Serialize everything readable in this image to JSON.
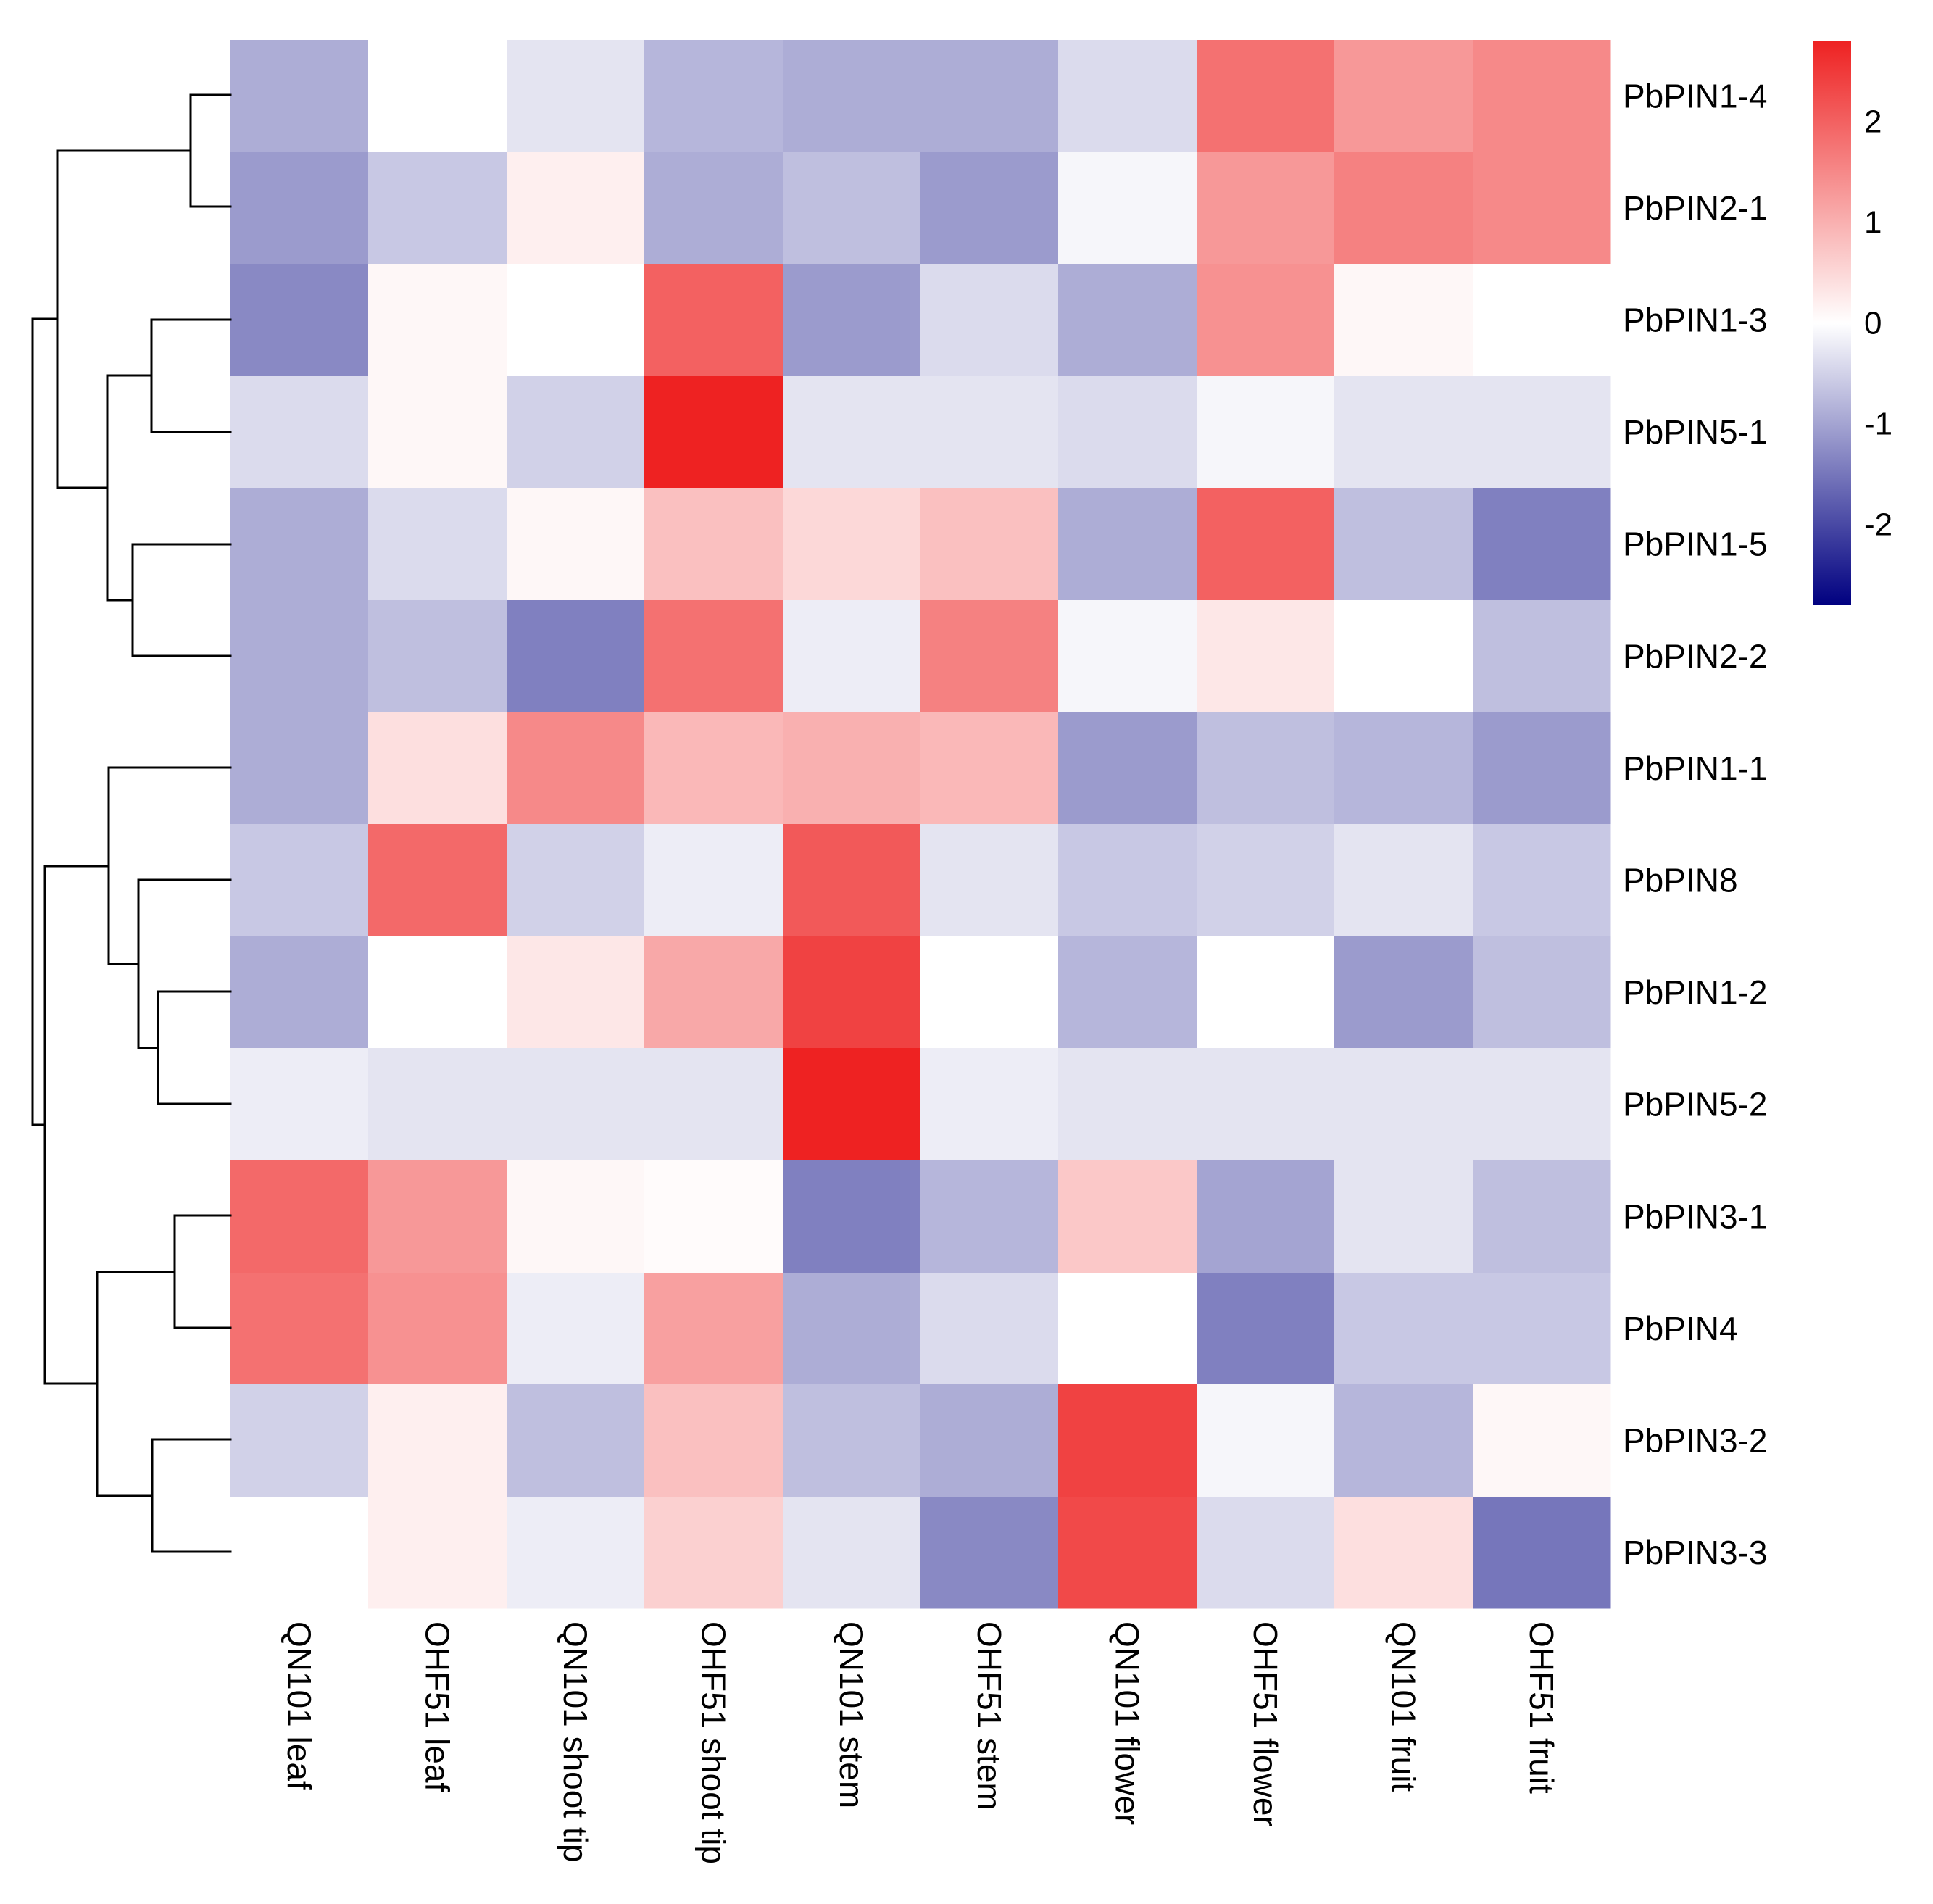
{
  "chart_data": {
    "type": "heatmap",
    "title": "",
    "columns": [
      "QN101 leaf",
      "OHF51 leaf",
      "QN101 shoot tip",
      "OHF51 shoot tip",
      "QN101 stem",
      "OHF51 stem",
      "QN101 flower",
      "OHF51 flower",
      "QN101 fruit",
      "OHF51 fruit"
    ],
    "rows": [
      "PbPIN1-4",
      "PbPIN2-1",
      "PbPIN1-3",
      "PbPIN5-1",
      "PbPIN1-5",
      "PbPIN2-2",
      "PbPIN1-1",
      "PbPIN8",
      "PbPIN1-2",
      "PbPIN5-2",
      "PbPIN3-1",
      "PbPIN4",
      "PbPIN3-2",
      "PbPIN3-3"
    ],
    "values": [
      [
        -0.9,
        0.0,
        -0.3,
        -0.8,
        -0.9,
        -0.9,
        -0.4,
        1.8,
        1.3,
        1.5
      ],
      [
        -1.1,
        -0.6,
        0.2,
        -0.9,
        -0.7,
        -1.1,
        -0.1,
        1.3,
        1.6,
        1.5
      ],
      [
        -1.3,
        0.1,
        0.0,
        2.0,
        -1.1,
        -0.4,
        -0.9,
        1.4,
        0.1,
        0.0
      ],
      [
        -0.4,
        0.1,
        -0.5,
        2.8,
        -0.3,
        -0.3,
        -0.4,
        -0.1,
        -0.3,
        -0.3
      ],
      [
        -0.9,
        -0.4,
        0.1,
        0.8,
        0.5,
        0.8,
        -0.9,
        2.0,
        -0.7,
        -1.4
      ],
      [
        -0.9,
        -0.7,
        -1.4,
        1.8,
        -0.2,
        1.6,
        -0.1,
        0.3,
        0.0,
        -0.7
      ],
      [
        -0.9,
        0.4,
        1.5,
        0.9,
        1.0,
        0.9,
        -1.1,
        -0.7,
        -0.8,
        -1.1
      ],
      [
        -0.6,
        1.9,
        -0.5,
        -0.2,
        2.1,
        -0.3,
        -0.6,
        -0.5,
        -0.3,
        -0.6
      ],
      [
        -0.9,
        0.0,
        0.3,
        1.1,
        2.4,
        0.0,
        -0.8,
        0.0,
        -1.1,
        -0.7
      ],
      [
        -0.2,
        -0.3,
        -0.3,
        -0.3,
        2.8,
        -0.2,
        -0.3,
        -0.3,
        -0.3,
        -0.3
      ],
      [
        1.9,
        1.3,
        0.1,
        0.05,
        -1.4,
        -0.8,
        0.7,
        -1.0,
        -0.3,
        -0.7
      ],
      [
        1.8,
        1.4,
        -0.2,
        1.2,
        -0.9,
        -0.4,
        0.0,
        -1.4,
        -0.6,
        -0.6
      ],
      [
        -0.5,
        0.2,
        -0.7,
        0.8,
        -0.7,
        -0.9,
        2.4,
        -0.1,
        -0.8,
        0.1
      ],
      [
        0.0,
        0.2,
        -0.2,
        0.6,
        -0.3,
        -1.3,
        2.3,
        -0.4,
        0.4,
        -1.5
      ]
    ],
    "color_scale": {
      "min": -2.8,
      "max": 2.8,
      "low_color": "#000080",
      "mid_color": "#ffffff",
      "high_color": "#ee2222",
      "ticks": [
        2,
        1,
        0,
        -1,
        -2
      ],
      "tick_labels": [
        "2",
        "1",
        "0",
        "-1",
        "-2"
      ]
    },
    "row_dendrogram": [
      [
        "PbPIN1-4",
        "PbPIN2-1"
      ],
      [
        "PbPIN1-3",
        "PbPIN5-1"
      ],
      [
        "PbPIN1-5",
        "PbPIN2-2"
      ],
      [
        "PbPIN1-2",
        "PbPIN5-2"
      ],
      [
        "PbPIN3-1",
        "PbPIN4"
      ],
      [
        "PbPIN3-2",
        "PbPIN3-3"
      ]
    ],
    "xlabel": "",
    "ylabel": "",
    "legend_position": "top-right"
  }
}
